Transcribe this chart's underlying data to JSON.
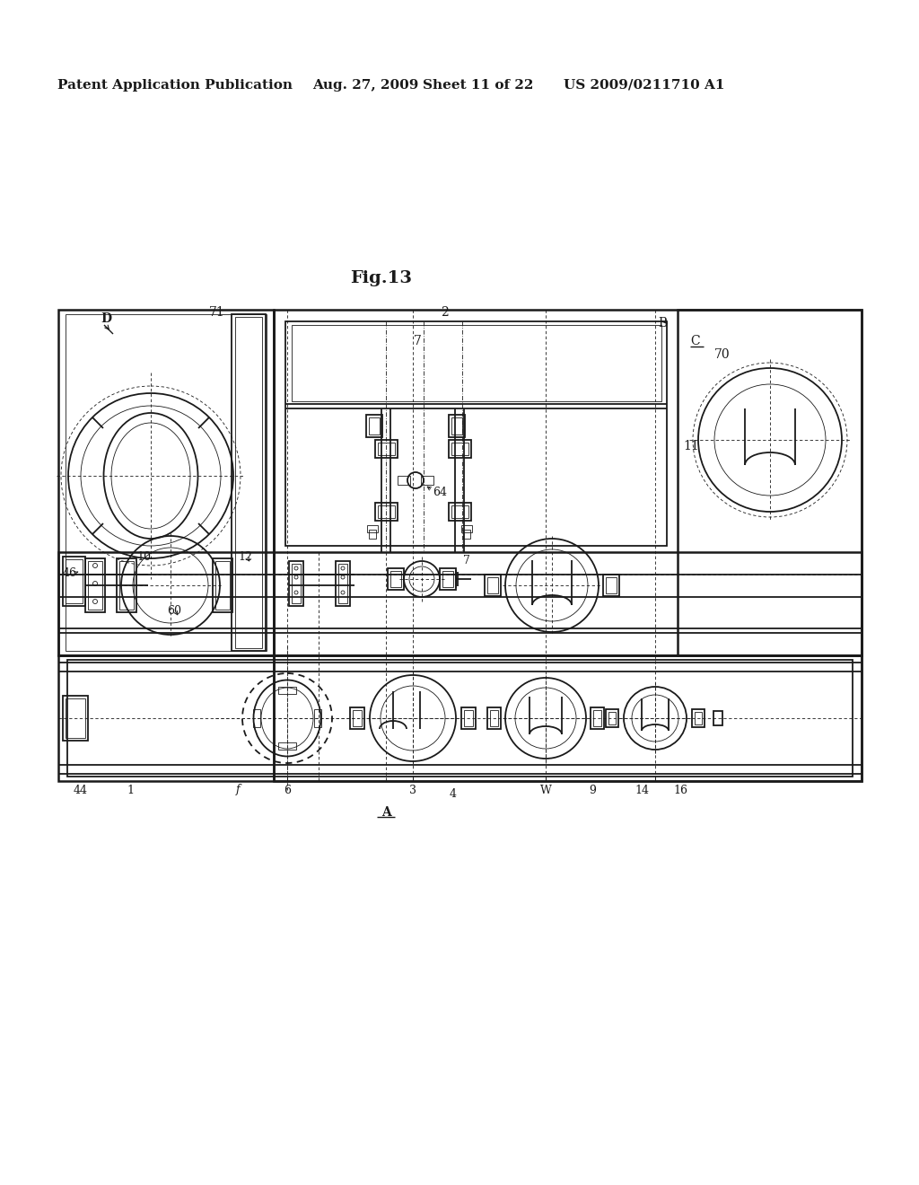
{
  "bg_color": "#ffffff",
  "header_text": "Patent Application Publication",
  "header_date": "Aug. 27, 2009",
  "header_sheet": "Sheet 11 of 22",
  "header_patent": "US 2009/0211710 A1",
  "fig_title": "Fig.13",
  "line_color": "#1a1a1a",
  "line_width": 1.3,
  "thin_line": 0.6,
  "thick_line": 1.8
}
